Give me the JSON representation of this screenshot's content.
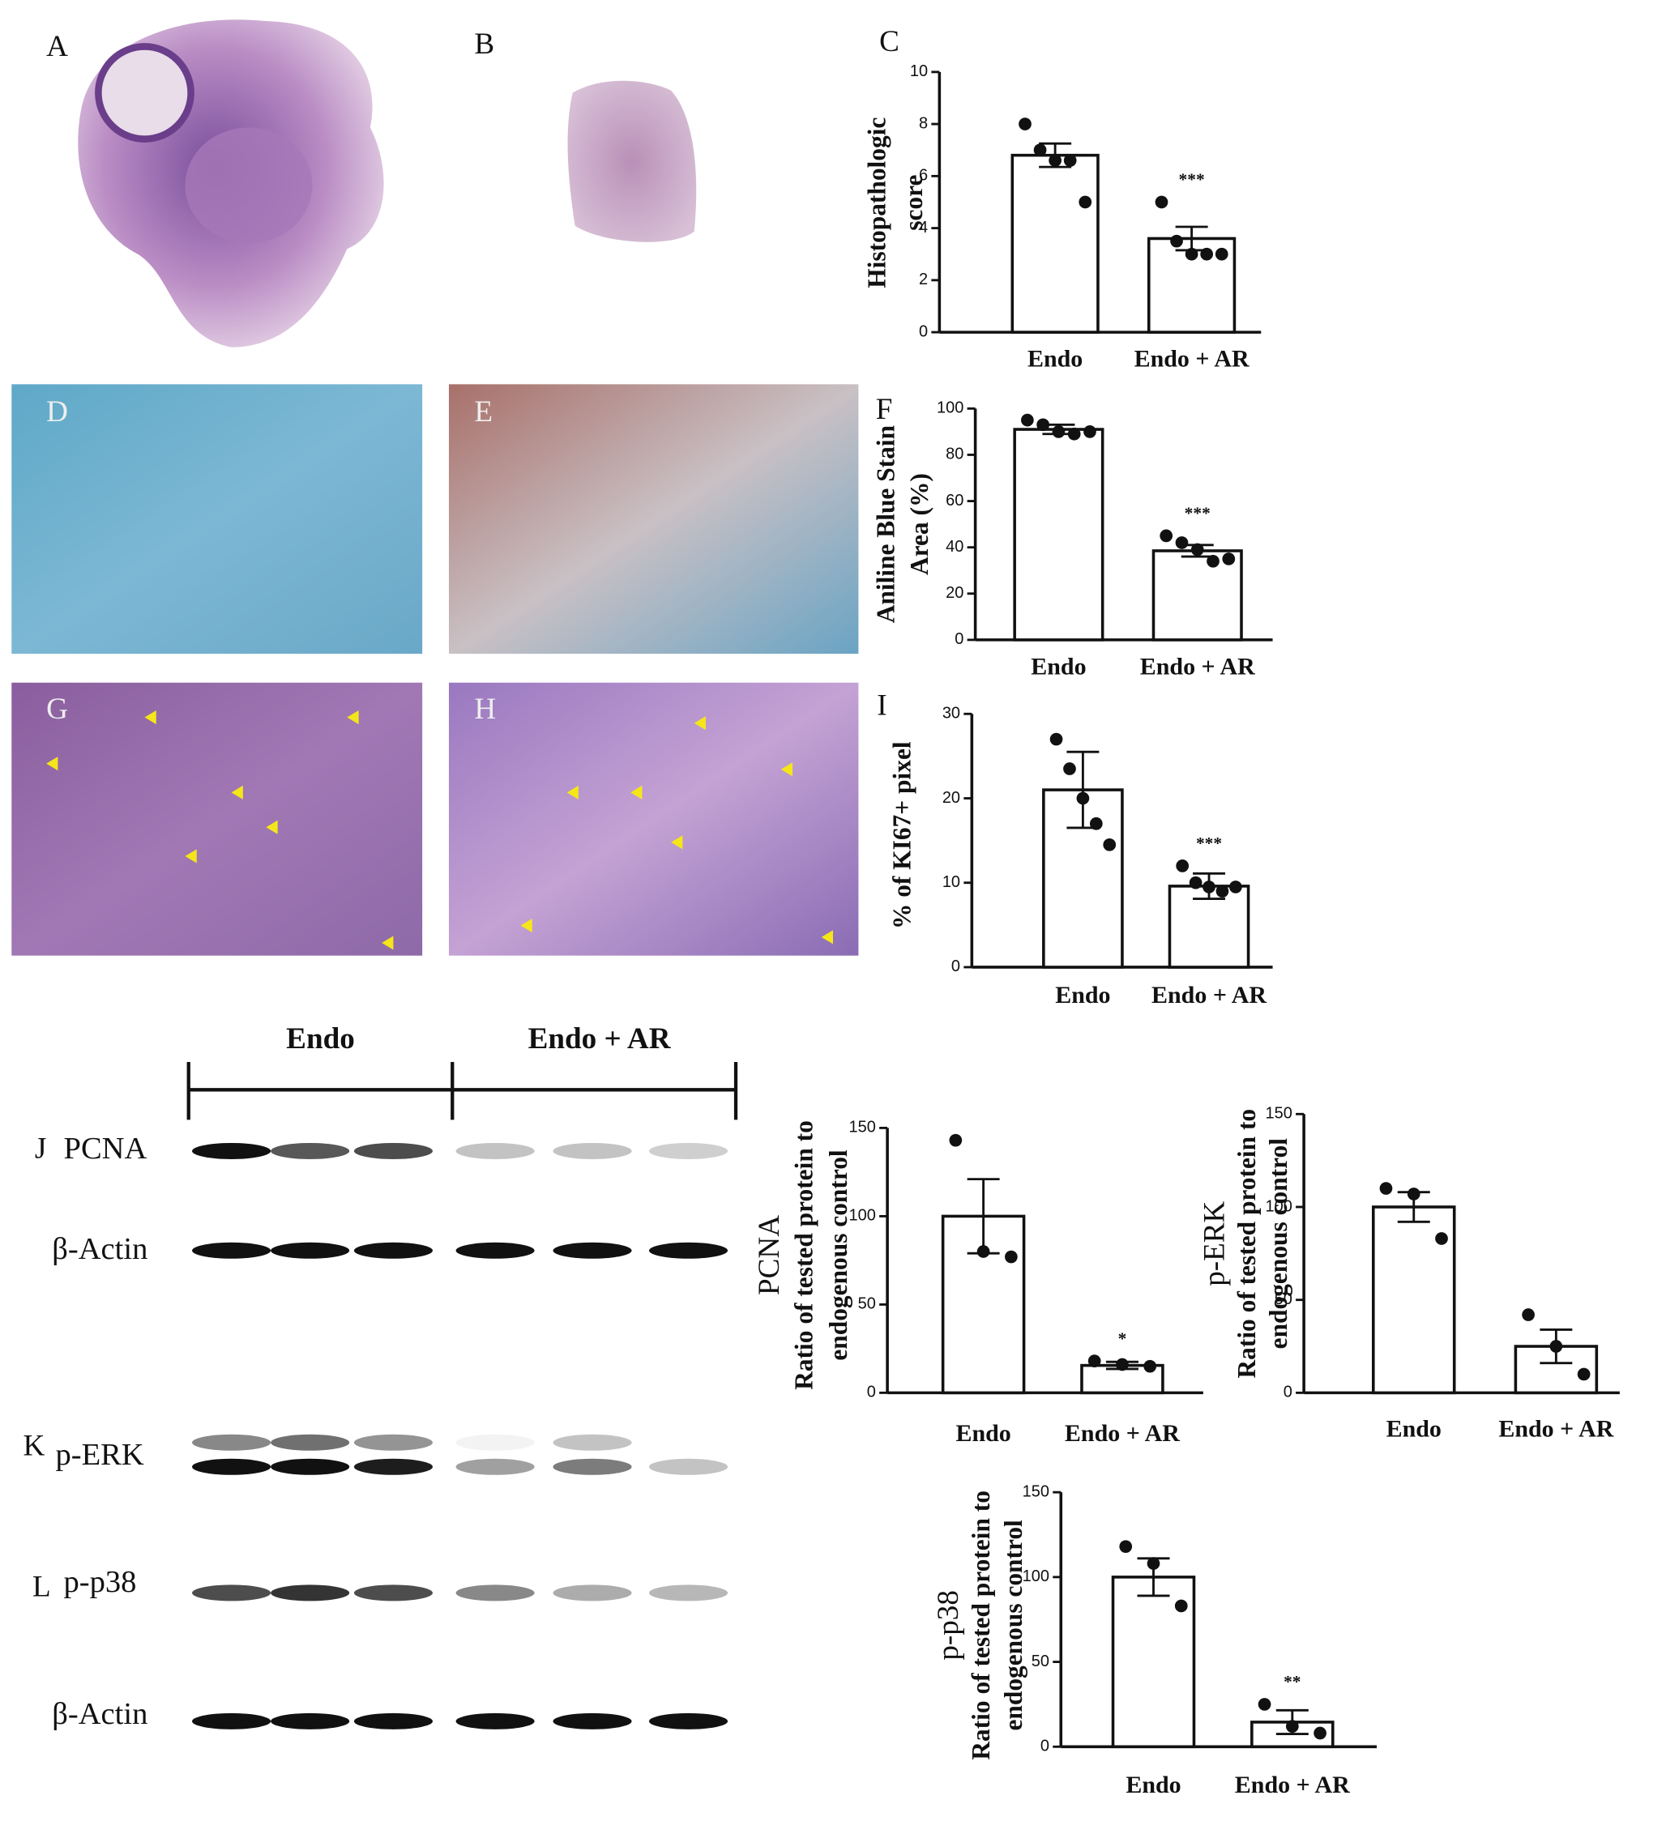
{
  "figure": {
    "panels": [
      "A",
      "B",
      "C",
      "D",
      "E",
      "F",
      "G",
      "H",
      "I",
      "J",
      "K",
      "L"
    ],
    "blot": {
      "groups": [
        "Endo",
        "Endo + AR"
      ],
      "rows": [
        "PCNA",
        "β-Actin",
        "p-ERK",
        "p-p38",
        "β-Actin"
      ]
    }
  },
  "chart_data": [
    {
      "type": "bar",
      "ylabel": [
        "Histopathologic",
        "score"
      ],
      "categories": [
        "Endo",
        "Endo + AR"
      ],
      "values": [
        6.8,
        3.6
      ],
      "errors": [
        0.45,
        0.45
      ],
      "points": [
        [
          8,
          7,
          6.6,
          6.6,
          5
        ],
        [
          5,
          3.5,
          3,
          3,
          3
        ]
      ],
      "significance": [
        null,
        "***"
      ],
      "ylim": [
        0,
        10
      ],
      "yticks": [
        0,
        2,
        4,
        6,
        8,
        10
      ],
      "color": "#ffffff"
    },
    {
      "type": "bar",
      "ylabel": [
        "Aniline Blue Stain",
        "Area (%)"
      ],
      "categories": [
        "Endo",
        "Endo + AR"
      ],
      "values": [
        91,
        38.5
      ],
      "errors": [
        2,
        2.5
      ],
      "points": [
        [
          95,
          93,
          90,
          89,
          90
        ],
        [
          45,
          42,
          39,
          34,
          35
        ]
      ],
      "significance": [
        null,
        "***"
      ],
      "ylim": [
        0,
        100
      ],
      "yticks": [
        0,
        20,
        40,
        60,
        80,
        100
      ],
      "color": "#ffffff"
    },
    {
      "type": "bar",
      "ylabel": [
        "% of KI67+ pixel"
      ],
      "categories": [
        "Endo",
        "Endo + AR"
      ],
      "values": [
        21,
        9.6
      ],
      "errors": [
        4.5,
        1.5
      ],
      "points": [
        [
          27,
          23.5,
          20,
          17,
          14.5
        ],
        [
          12,
          10,
          9.5,
          9,
          9.5
        ]
      ],
      "significance": [
        null,
        "***"
      ],
      "ylim": [
        0,
        30
      ],
      "yticks": [
        0,
        10,
        20,
        30
      ],
      "color": "#ffffff"
    },
    {
      "type": "bar",
      "ylabel": [
        "PCNA",
        "Ratio of tested protein to",
        "endogenous control"
      ],
      "categories": [
        "Endo",
        "Endo + AR"
      ],
      "values": [
        100,
        15.5
      ],
      "errors": [
        21,
        2
      ],
      "points": [
        [
          143,
          80,
          77
        ],
        [
          18,
          16,
          15
        ]
      ],
      "significance": [
        null,
        "*"
      ],
      "ylim": [
        0,
        150
      ],
      "yticks": [
        0,
        50,
        100,
        150
      ],
      "color": "#ffffff"
    },
    {
      "type": "bar",
      "ylabel": [
        "p-ERK",
        "Ratio of tested protein to",
        "endogenous control"
      ],
      "categories": [
        "Endo",
        "Endo + AR"
      ],
      "values": [
        100,
        25
      ],
      "errors": [
        8,
        9
      ],
      "points": [
        [
          110,
          107,
          83
        ],
        [
          42,
          25,
          10
        ]
      ],
      "significance": [
        null,
        null
      ],
      "ylim": [
        0,
        150
      ],
      "yticks": [
        0,
        50,
        100,
        150
      ],
      "color": "#ffffff"
    },
    {
      "type": "bar",
      "ylabel": [
        "p-p38",
        "Ratio of tested protein to",
        "endogenous control"
      ],
      "categories": [
        "Endo",
        "Endo + AR"
      ],
      "values": [
        100,
        14.5
      ],
      "errors": [
        11,
        7
      ],
      "points": [
        [
          118,
          108,
          83
        ],
        [
          25,
          12,
          8
        ]
      ],
      "significance": [
        null,
        "**"
      ],
      "ylim": [
        0,
        150
      ],
      "yticks": [
        0,
        50,
        100,
        150
      ],
      "color": "#ffffff"
    }
  ]
}
